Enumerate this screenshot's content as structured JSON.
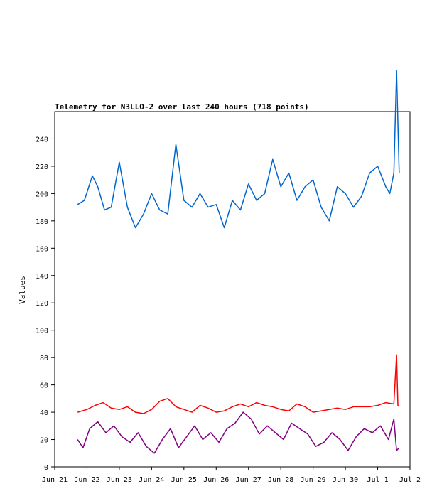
{
  "chart_data": {
    "type": "line",
    "title": "Telemetry for N3LLO-2 over last 240 hours (718 points)",
    "xlabel": "",
    "ylabel": "Values",
    "x_range": [
      "2025-06-21T00:00",
      "2025-07-02T00:00"
    ],
    "x_ticks": [
      "Jun 21",
      "Jun 22",
      "Jun 23",
      "Jun 24",
      "Jun 25",
      "Jun 26",
      "Jun 27",
      "Jun 28",
      "Jun 29",
      "Jun 30",
      "Jul 1",
      "Jul 2"
    ],
    "ylim": [
      0,
      260
    ],
    "y_ticks": [
      0,
      20,
      40,
      60,
      80,
      100,
      120,
      140,
      160,
      180,
      200,
      220,
      240
    ],
    "grid": false,
    "legend": "none",
    "series": [
      {
        "color": "#0066cc",
        "x": [
          "2025-06-21T17:00",
          "2025-06-21T22:00",
          "2025-06-22T04:00",
          "2025-06-22T08:00",
          "2025-06-22T13:00",
          "2025-06-22T18:00",
          "2025-06-23T00:00",
          "2025-06-23T06:00",
          "2025-06-23T12:00",
          "2025-06-23T18:00",
          "2025-06-24T00:00",
          "2025-06-24T06:00",
          "2025-06-24T12:00",
          "2025-06-24T18:00",
          "2025-06-25T00:00",
          "2025-06-25T06:00",
          "2025-06-25T12:00",
          "2025-06-25T18:00",
          "2025-06-26T00:00",
          "2025-06-26T06:00",
          "2025-06-26T12:00",
          "2025-06-26T18:00",
          "2025-06-27T00:00",
          "2025-06-27T06:00",
          "2025-06-27T12:00",
          "2025-06-27T18:00",
          "2025-06-28T00:00",
          "2025-06-28T06:00",
          "2025-06-28T12:00",
          "2025-06-28T18:00",
          "2025-06-29T00:00",
          "2025-06-29T06:00",
          "2025-06-29T12:00",
          "2025-06-29T18:00",
          "2025-06-30T00:00",
          "2025-06-30T06:00",
          "2025-06-30T12:00",
          "2025-06-30T18:00",
          "2025-07-01T00:00",
          "2025-07-01T06:00",
          "2025-07-01T09:00",
          "2025-07-01T12:00",
          "2025-07-01T14:00",
          "2025-07-01T16:00"
        ],
        "values": [
          192,
          195,
          213,
          205,
          188,
          190,
          223,
          190,
          175,
          185,
          200,
          188,
          185,
          236,
          195,
          190,
          200,
          190,
          192,
          175,
          195,
          188,
          207,
          195,
          200,
          225,
          205,
          215,
          195,
          205,
          210,
          190,
          180,
          205,
          200,
          190,
          198,
          215,
          220,
          205,
          200,
          215,
          290,
          215
        ]
      },
      {
        "color": "#ff0000",
        "x": [
          "2025-06-21T17:00",
          "2025-06-22T00:00",
          "2025-06-22T06:00",
          "2025-06-22T12:00",
          "2025-06-22T18:00",
          "2025-06-23T00:00",
          "2025-06-23T06:00",
          "2025-06-23T12:00",
          "2025-06-23T18:00",
          "2025-06-24T00:00",
          "2025-06-24T06:00",
          "2025-06-24T12:00",
          "2025-06-24T18:00",
          "2025-06-25T00:00",
          "2025-06-25T06:00",
          "2025-06-25T12:00",
          "2025-06-25T18:00",
          "2025-06-26T00:00",
          "2025-06-26T06:00",
          "2025-06-26T12:00",
          "2025-06-26T18:00",
          "2025-06-27T00:00",
          "2025-06-27T06:00",
          "2025-06-27T12:00",
          "2025-06-27T18:00",
          "2025-06-28T00:00",
          "2025-06-28T06:00",
          "2025-06-28T12:00",
          "2025-06-28T18:00",
          "2025-06-29T00:00",
          "2025-06-29T06:00",
          "2025-06-29T12:00",
          "2025-06-29T18:00",
          "2025-06-30T00:00",
          "2025-06-30T06:00",
          "2025-06-30T12:00",
          "2025-06-30T18:00",
          "2025-07-01T00:00",
          "2025-07-01T06:00",
          "2025-07-01T12:00",
          "2025-07-01T14:00",
          "2025-07-01T15:00",
          "2025-07-01T16:00"
        ],
        "values": [
          40,
          42,
          45,
          47,
          43,
          42,
          44,
          40,
          39,
          42,
          48,
          50,
          44,
          42,
          40,
          45,
          43,
          40,
          41,
          44,
          46,
          44,
          47,
          45,
          44,
          42,
          41,
          46,
          44,
          40,
          41,
          42,
          43,
          42,
          44,
          44,
          44,
          45,
          47,
          46,
          82,
          45,
          44
        ]
      },
      {
        "color": "#800080",
        "x": [
          "2025-06-21T17:00",
          "2025-06-21T21:00",
          "2025-06-22T02:00",
          "2025-06-22T08:00",
          "2025-06-22T14:00",
          "2025-06-22T20:00",
          "2025-06-23T02:00",
          "2025-06-23T08:00",
          "2025-06-23T14:00",
          "2025-06-23T20:00",
          "2025-06-24T02:00",
          "2025-06-24T08:00",
          "2025-06-24T14:00",
          "2025-06-24T20:00",
          "2025-06-25T02:00",
          "2025-06-25T08:00",
          "2025-06-25T14:00",
          "2025-06-25T20:00",
          "2025-06-26T02:00",
          "2025-06-26T08:00",
          "2025-06-26T14:00",
          "2025-06-26T20:00",
          "2025-06-27T02:00",
          "2025-06-27T08:00",
          "2025-06-27T14:00",
          "2025-06-27T20:00",
          "2025-06-28T02:00",
          "2025-06-28T08:00",
          "2025-06-28T14:00",
          "2025-06-28T20:00",
          "2025-06-29T02:00",
          "2025-06-29T08:00",
          "2025-06-29T14:00",
          "2025-06-29T20:00",
          "2025-06-30T02:00",
          "2025-06-30T08:00",
          "2025-06-30T14:00",
          "2025-06-30T20:00",
          "2025-07-01T02:00",
          "2025-07-01T08:00",
          "2025-07-01T12:00",
          "2025-07-01T14:00",
          "2025-07-01T16:00"
        ],
        "values": [
          20,
          14,
          28,
          33,
          25,
          30,
          22,
          18,
          25,
          15,
          10,
          20,
          28,
          14,
          22,
          30,
          20,
          25,
          18,
          28,
          32,
          40,
          35,
          24,
          30,
          25,
          20,
          32,
          28,
          24,
          15,
          18,
          25,
          20,
          12,
          22,
          28,
          25,
          30,
          20,
          35,
          12,
          14
        ]
      }
    ]
  }
}
